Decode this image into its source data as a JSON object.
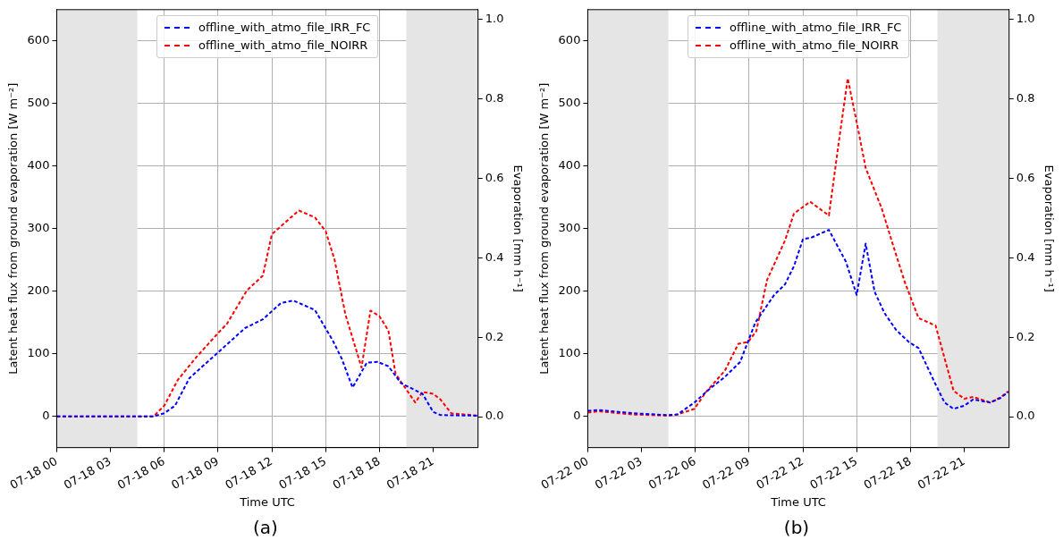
{
  "chart_data": [
    {
      "type": "line",
      "xlabel": "Time UTC",
      "ylabel": "Latent heat flux from ground evaporation [W m⁻²]",
      "y2label": "Evaporation [mm h⁻¹]",
      "xlim": [
        "--07-18T00:00",
        "--07-18T23:30"
      ],
      "xticks": [
        {
          "value": "--07-18T00:00",
          "label": "07-18 00"
        },
        {
          "value": "--07-18T03:00",
          "label": "07-18 03"
        },
        {
          "value": "--07-18T06:00",
          "label": "07-18 06"
        },
        {
          "value": "--07-18T09:00",
          "label": "07-18 09"
        },
        {
          "value": "--07-18T12:00",
          "label": "07-18 12"
        },
        {
          "value": "--07-18T15:00",
          "label": "07-18 15"
        },
        {
          "value": "--07-18T18:00",
          "label": "07-18 18"
        },
        {
          "value": "--07-18T21:00",
          "label": "07-18 21"
        }
      ],
      "ylim": [
        -50,
        650
      ],
      "yticks": [
        0,
        100,
        200,
        300,
        400,
        500,
        600
      ],
      "y2lim": [
        -0.078,
        1.025
      ],
      "y2ticks": [
        {
          "value": 0,
          "label": "0.0"
        },
        {
          "value": 0.2,
          "label": "0.2"
        },
        {
          "value": 0.4,
          "label": "0.4"
        },
        {
          "value": 0.6,
          "label": "0.6"
        },
        {
          "value": 0.8,
          "label": "0.8"
        },
        {
          "value": 1,
          "label": "1.0"
        }
      ],
      "grid": true,
      "legend": "top",
      "line_style": "dashed",
      "marker": "none",
      "bands": [
        {
          "axis": "x",
          "from": "--07-18T00:00",
          "to": "--07-18T04:30",
          "color": "#e5e5e5"
        },
        {
          "axis": "x",
          "from": "--07-18T19:30",
          "to": "--07-18T23:30",
          "color": "#e5e5e5"
        }
      ],
      "annotations": [
        "(a)"
      ],
      "series": [
        {
          "name": "offline_with_atmo_file_IRR_FC",
          "color": "#0000ff",
          "x": [
            "--07-18T00:00",
            "--07-18T05:24",
            "--07-18T06:00",
            "--07-18T06:36",
            "--07-18T07:24",
            "--07-18T08:48",
            "--07-18T10:30",
            "--07-18T11:30",
            "--07-18T12:30",
            "--07-18T13:12",
            "--07-18T14:24",
            "--07-18T15:24",
            "--07-18T15:54",
            "--07-18T16:30",
            "--07-18T17:18",
            "--07-18T17:54",
            "--07-18T18:30",
            "--07-18T19:12",
            "--07-18T20:24",
            "--07-18T21:00",
            "--07-18T21:24",
            "--07-18T23:30"
          ],
          "values": [
            0,
            0,
            5,
            17,
            61,
            97,
            141,
            155,
            181,
            185,
            170,
            121,
            92,
            46,
            86,
            87,
            80,
            53,
            36,
            7,
            2,
            1
          ]
        },
        {
          "name": "offline_with_atmo_file_NOIRR",
          "color": "#ff0000",
          "x": [
            "--07-18T00:00",
            "--07-18T05:24",
            "--07-18T06:00",
            "--07-18T06:45",
            "--07-18T07:48",
            "--07-18T09:00",
            "--07-18T09:30",
            "--07-18T10:36",
            "--07-18T11:30",
            "--07-18T12:00",
            "--07-18T13:30",
            "--07-18T14:24",
            "--07-18T15:00",
            "--07-18T15:30",
            "--07-18T16:06",
            "--07-18T17:00",
            "--07-18T17:30",
            "--07-18T18:00",
            "--07-18T18:30",
            "--07-18T18:54",
            "--07-18T20:00",
            "--07-18T20:24",
            "--07-18T21:00",
            "--07-18T21:24",
            "--07-18T22:00",
            "--07-18T23:30"
          ],
          "values": [
            0,
            0,
            17,
            58,
            95,
            133,
            148,
            201,
            225,
            291,
            329,
            318,
            296,
            250,
            163,
            78,
            169,
            160,
            137,
            68,
            22,
            39,
            36,
            27,
            5,
            1
          ]
        }
      ]
    },
    {
      "type": "line",
      "xlabel": "Time UTC",
      "ylabel": "Latent heat flux from ground evaporation [W m⁻²]",
      "y2label": "Evaporation [mm h⁻¹]",
      "xlim": [
        "--07-22T00:00",
        "--07-22T23:30"
      ],
      "xticks": [
        {
          "value": "--07-22T00:00",
          "label": "07-22 00"
        },
        {
          "value": "--07-22T03:00",
          "label": "07-22 03"
        },
        {
          "value": "--07-22T06:00",
          "label": "07-22 06"
        },
        {
          "value": "--07-22T09:00",
          "label": "07-22 09"
        },
        {
          "value": "--07-22T12:00",
          "label": "07-22 12"
        },
        {
          "value": "--07-22T15:00",
          "label": "07-22 15"
        },
        {
          "value": "--07-22T18:00",
          "label": "07-22 18"
        },
        {
          "value": "--07-22T21:00",
          "label": "07-22 21"
        }
      ],
      "ylim": [
        -50,
        650
      ],
      "yticks": [
        0,
        100,
        200,
        300,
        400,
        500,
        600
      ],
      "y2lim": [
        -0.078,
        1.025
      ],
      "y2ticks": [
        {
          "value": 0,
          "label": "0.0"
        },
        {
          "value": 0.2,
          "label": "0.2"
        },
        {
          "value": 0.4,
          "label": "0.4"
        },
        {
          "value": 0.6,
          "label": "0.6"
        },
        {
          "value": 0.8,
          "label": "0.8"
        },
        {
          "value": 1,
          "label": "1.0"
        }
      ],
      "grid": true,
      "legend": "top",
      "line_style": "dashed",
      "marker": "none",
      "bands": [
        {
          "axis": "x",
          "from": "--07-22T00:00",
          "to": "--07-22T04:30",
          "color": "#e5e5e5"
        },
        {
          "axis": "x",
          "from": "--07-22T19:30",
          "to": "--07-22T23:30",
          "color": "#e5e5e5"
        }
      ],
      "annotations": [
        "(b)"
      ],
      "series": [
        {
          "name": "offline_with_atmo_file_IRR_FC",
          "color": "#0000ff",
          "x": [
            "--07-22T00:00",
            "--07-22T00:39",
            "--07-22T02:30",
            "--07-22T04:24",
            "--07-22T05:00",
            "--07-22T05:57",
            "--07-22T06:48",
            "--07-22T07:39",
            "--07-22T08:30",
            "--07-22T09:21",
            "--07-22T10:24",
            "--07-22T11:00",
            "--07-22T11:30",
            "--07-22T12:00",
            "--07-22T12:30",
            "--07-22T13:27",
            "--07-22T14:24",
            "--07-22T15:00",
            "--07-22T15:30",
            "--07-22T16:00",
            "--07-22T16:33",
            "--07-22T17:12",
            "--07-22T17:54",
            "--07-22T18:27",
            "--07-22T19:24",
            "--07-22T19:54",
            "--07-22T20:24",
            "--07-22T21:00",
            "--07-22T21:30",
            "--07-22T22:27",
            "--07-22T23:00",
            "--07-22T23:27"
          ],
          "values": [
            9,
            10,
            5,
            2,
            3,
            22,
            44,
            63,
            87,
            150,
            194,
            211,
            240,
            283,
            286,
            298,
            247,
            194,
            276,
            199,
            165,
            138,
            119,
            109,
            51,
            22,
            12,
            17,
            27,
            22,
            29,
            39
          ]
        },
        {
          "name": "offline_with_atmo_file_NOIRR",
          "color": "#ff0000",
          "x": [
            "--07-22T00:00",
            "--07-22T00:39",
            "--07-22T02:30",
            "--07-22T04:24",
            "--07-22T05:00",
            "--07-22T05:57",
            "--07-22T06:36",
            "--07-22T07:39",
            "--07-22T08:24",
            "--07-22T08:57",
            "--07-22T09:24",
            "--07-22T10:00",
            "--07-22T11:00",
            "--07-22T11:30",
            "--07-22T12:24",
            "--07-22T13:27",
            "--07-22T14:00",
            "--07-22T14:30",
            "--07-22T15:00",
            "--07-22T15:30",
            "--07-22T16:24",
            "--07-22T17:00",
            "--07-22T17:42",
            "--07-22T18:27",
            "--07-22T19:24",
            "--07-22T20:24",
            "--07-22T21:00",
            "--07-22T21:30",
            "--07-22T22:27",
            "--07-22T23:00",
            "--07-22T23:27"
          ],
          "values": [
            6,
            8,
            3,
            1,
            3,
            12,
            39,
            73,
            116,
            119,
            136,
            218,
            281,
            324,
            343,
            321,
            438,
            540,
            470,
            397,
            332,
            276,
            213,
            157,
            145,
            41,
            28,
            31,
            22,
            30,
            40
          ]
        }
      ]
    }
  ]
}
